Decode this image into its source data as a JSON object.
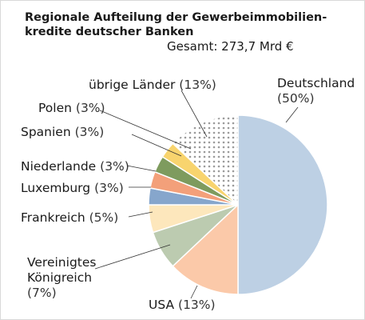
{
  "chart_data": {
    "type": "pie",
    "title": "Regionale Aufteilung der Gewerbeimmobilien-kredite deutscher Banken",
    "subtitle": "Gesamt: 273,7 Mrd €",
    "categories": [
      "Deutschland",
      "USA",
      "Vereinigtes Königreich",
      "Frankreich",
      "Luxemburg",
      "Niederlande",
      "Spanien",
      "Polen",
      "übrige Länder"
    ],
    "values": [
      50,
      13,
      7,
      5,
      3,
      3,
      3,
      3,
      13
    ],
    "value_labels": [
      "(50%)",
      "(13%)",
      "(7%)",
      "(5%)",
      "(3%)",
      "(3%)",
      "(3%)",
      "(3%)",
      "(13%)"
    ],
    "colors": [
      "#bdd0e4",
      "#fbc9a9",
      "#bccbb0",
      "#fde7bc",
      "#86a6cc",
      "#f3a07a",
      "#7e9b5e",
      "#f8d46e",
      "#9a9a9a"
    ]
  }
}
